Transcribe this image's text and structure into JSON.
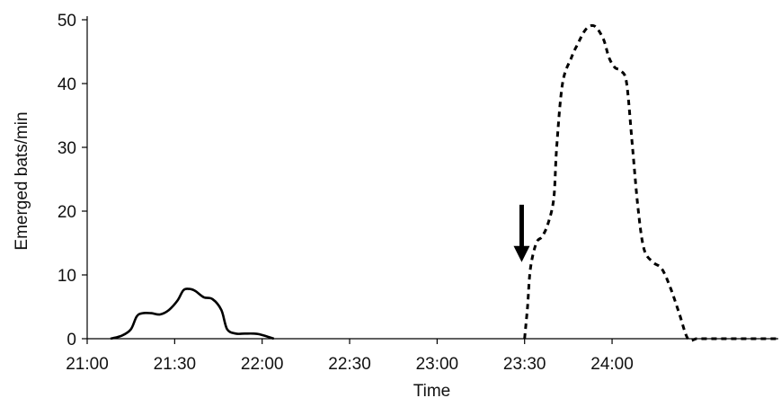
{
  "chart_data": {
    "type": "line",
    "title": "",
    "xlabel": "Time",
    "ylabel": "Emerged bats/min",
    "ylim": [
      0,
      50
    ],
    "y_ticks": [
      0,
      10,
      20,
      30,
      40,
      50
    ],
    "x_ticks": [
      "21:00",
      "21:30",
      "22:00",
      "22:30",
      "23:00",
      "23:30",
      "24:00"
    ],
    "xlim": [
      "21:00",
      "24:57"
    ],
    "grid": false,
    "legend": "none",
    "series": [
      {
        "style": "solid",
        "color": "#000000",
        "x": [
          "21:08",
          "21:12",
          "21:15",
          "21:17",
          "21:19",
          "21:22",
          "21:25",
          "21:28",
          "21:31",
          "21:33",
          "21:35",
          "21:37",
          "21:40",
          "21:43",
          "21:46",
          "21:48",
          "21:51",
          "21:54",
          "21:57",
          "21:59",
          "22:02",
          "22:04"
        ],
        "y": [
          0,
          0.5,
          1.5,
          3.5,
          4,
          4,
          3.8,
          4.5,
          6,
          7.6,
          7.8,
          7.5,
          6.5,
          6.2,
          4.5,
          1.5,
          0.8,
          0.8,
          0.8,
          0.7,
          0.3,
          0
        ]
      },
      {
        "style": "dashed",
        "color": "#000000",
        "x": [
          "23:30",
          "23:31",
          "23:32",
          "23:34",
          "23:36",
          "23:38",
          "23:40",
          "23:41",
          "23:43",
          "23:46",
          "23:48",
          "23:51",
          "23:54",
          "23:57",
          "23:59",
          "24:01",
          "24:03",
          "24:05",
          "24:07",
          "24:09",
          "24:11",
          "24:14",
          "24:17",
          "24:20",
          "24:23",
          "24:26",
          "24:29",
          "24:32",
          "24:35",
          "24:38",
          "24:41",
          "24:44",
          "24:47",
          "24:50",
          "24:53",
          "24:57"
        ],
        "y": [
          0,
          5,
          11,
          15,
          16,
          18,
          22,
          30,
          40,
          44,
          46,
          48.5,
          49,
          47,
          44,
          42.5,
          42,
          40,
          30,
          20,
          14,
          12,
          11,
          8,
          4,
          0,
          0,
          0,
          0,
          0,
          0,
          0,
          0,
          0,
          0,
          0
        ]
      }
    ],
    "annotations": [
      {
        "type": "arrow",
        "direction": "down",
        "x": "23:29",
        "y_from": 21,
        "y_to": 12
      }
    ]
  }
}
